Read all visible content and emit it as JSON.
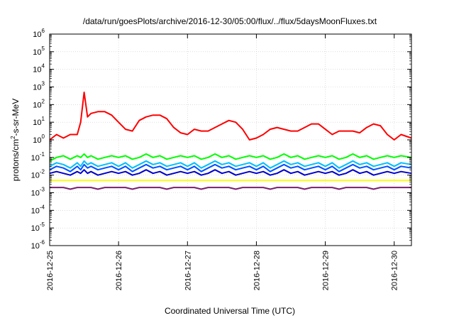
{
  "chart_data": {
    "type": "line",
    "title": "/data/run/goesPlots/archive/2016-12-30/05:00/flux/../flux/5daysMoonFluxes.txt",
    "xlabel": "Coordinated Universal Time (UTC)",
    "ylabel_main": "protons/cm",
    "ylabel_sup": "2",
    "ylabel_rest": "-s-sr-MeV",
    "y_scale": "log",
    "ylim": [
      -6,
      6
    ],
    "xlim": [
      0,
      5.25
    ],
    "y_tick_exponents": [
      "-6",
      "-5",
      "-4",
      "-3",
      "-2",
      "-1",
      "0",
      "1",
      "2",
      "3",
      "4",
      "5",
      "6"
    ],
    "y_tick_base": "10",
    "x_ticks": [
      {
        "pos": 0,
        "label": "2016-12-25"
      },
      {
        "pos": 1,
        "label": "2016-12-26"
      },
      {
        "pos": 2,
        "label": "2016-12-27"
      },
      {
        "pos": 3,
        "label": "2016-12-28"
      },
      {
        "pos": 4,
        "label": "2016-12-29"
      },
      {
        "pos": 5,
        "label": "2016-12-30"
      }
    ],
    "grid": true,
    "legend": "none",
    "x": [
      0.0,
      0.1,
      0.2,
      0.3,
      0.4,
      0.45,
      0.5,
      0.55,
      0.6,
      0.7,
      0.8,
      0.9,
      1.0,
      1.1,
      1.2,
      1.3,
      1.4,
      1.5,
      1.6,
      1.7,
      1.8,
      1.9,
      2.0,
      2.1,
      2.2,
      2.3,
      2.4,
      2.5,
      2.6,
      2.7,
      2.8,
      2.9,
      3.0,
      3.1,
      3.2,
      3.3,
      3.4,
      3.5,
      3.6,
      3.7,
      3.8,
      3.9,
      4.0,
      4.1,
      4.2,
      4.3,
      4.4,
      4.5,
      4.6,
      4.7,
      4.8,
      4.9,
      5.0,
      5.1,
      5.25
    ],
    "series": [
      {
        "color": "#ff0000",
        "log10_values": [
          0.0,
          0.3,
          0.1,
          0.3,
          0.3,
          1.0,
          2.7,
          1.3,
          1.5,
          1.6,
          1.6,
          1.4,
          1.0,
          0.6,
          0.5,
          1.1,
          1.3,
          1.4,
          1.4,
          1.2,
          0.7,
          0.4,
          0.3,
          0.6,
          0.5,
          0.5,
          0.7,
          0.9,
          1.1,
          1.0,
          0.6,
          0.0,
          0.1,
          0.3,
          0.6,
          0.7,
          0.6,
          0.5,
          0.5,
          0.7,
          0.9,
          0.9,
          0.6,
          0.3,
          0.5,
          0.5,
          0.5,
          0.4,
          0.7,
          0.9,
          0.8,
          0.3,
          0.0,
          0.3,
          0.1
        ]
      },
      {
        "color": "#00ff00",
        "log10_values": [
          -1.2,
          -1.0,
          -0.9,
          -1.1,
          -0.9,
          -1.0,
          -0.8,
          -1.0,
          -0.9,
          -1.1,
          -1.0,
          -0.9,
          -1.0,
          -0.9,
          -1.1,
          -1.0,
          -0.8,
          -1.0,
          -0.9,
          -1.1,
          -1.0,
          -0.9,
          -1.0,
          -0.9,
          -1.1,
          -1.0,
          -0.8,
          -1.0,
          -0.9,
          -1.1,
          -1.0,
          -0.9,
          -1.0,
          -0.9,
          -1.1,
          -1.0,
          -0.8,
          -1.0,
          -0.9,
          -1.1,
          -1.0,
          -0.9,
          -1.0,
          -0.9,
          -1.1,
          -1.0,
          -0.8,
          -1.0,
          -0.9,
          -1.1,
          -1.0,
          -0.9,
          -1.0,
          -0.9,
          -1.0
        ]
      },
      {
        "color": "#00bfff",
        "log10_values": [
          -1.5,
          -1.3,
          -1.4,
          -1.6,
          -1.3,
          -1.5,
          -1.2,
          -1.4,
          -1.3,
          -1.5,
          -1.4,
          -1.3,
          -1.5,
          -1.3,
          -1.6,
          -1.4,
          -1.2,
          -1.4,
          -1.3,
          -1.5,
          -1.4,
          -1.3,
          -1.5,
          -1.3,
          -1.6,
          -1.4,
          -1.2,
          -1.4,
          -1.3,
          -1.5,
          -1.4,
          -1.3,
          -1.5,
          -1.3,
          -1.6,
          -1.4,
          -1.2,
          -1.4,
          -1.3,
          -1.5,
          -1.4,
          -1.3,
          -1.5,
          -1.3,
          -1.6,
          -1.4,
          -1.2,
          -1.4,
          -1.3,
          -1.5,
          -1.4,
          -1.3,
          -1.5,
          -1.3,
          -1.4
        ]
      },
      {
        "color": "#0050ff",
        "log10_values": [
          -1.7,
          -1.5,
          -1.6,
          -1.8,
          -1.5,
          -1.7,
          -1.4,
          -1.6,
          -1.5,
          -1.7,
          -1.6,
          -1.5,
          -1.7,
          -1.5,
          -1.8,
          -1.6,
          -1.4,
          -1.6,
          -1.5,
          -1.7,
          -1.6,
          -1.5,
          -1.7,
          -1.5,
          -1.8,
          -1.6,
          -1.4,
          -1.6,
          -1.5,
          -1.7,
          -1.6,
          -1.5,
          -1.7,
          -1.5,
          -1.8,
          -1.6,
          -1.4,
          -1.6,
          -1.5,
          -1.7,
          -1.6,
          -1.5,
          -1.7,
          -1.5,
          -1.8,
          -1.6,
          -1.4,
          -1.6,
          -1.5,
          -1.7,
          -1.6,
          -1.5,
          -1.7,
          -1.5,
          -1.6
        ]
      },
      {
        "color": "#0000cc",
        "log10_values": [
          -1.9,
          -1.8,
          -1.9,
          -2.0,
          -1.8,
          -1.9,
          -1.7,
          -1.9,
          -1.8,
          -2.0,
          -1.9,
          -1.8,
          -1.9,
          -1.8,
          -2.0,
          -1.9,
          -1.7,
          -1.9,
          -1.8,
          -2.0,
          -1.9,
          -1.8,
          -1.9,
          -1.8,
          -2.0,
          -1.9,
          -1.7,
          -1.9,
          -1.8,
          -2.0,
          -1.9,
          -1.8,
          -1.9,
          -1.8,
          -2.0,
          -1.9,
          -1.7,
          -1.9,
          -1.8,
          -2.0,
          -1.9,
          -1.8,
          -1.9,
          -1.8,
          -2.0,
          -1.9,
          -1.7,
          -1.9,
          -1.8,
          -2.0,
          -1.9,
          -1.8,
          -1.9,
          -1.8,
          -1.9
        ]
      },
      {
        "color": "#ffff00",
        "log10_values": [
          -2.3,
          -2.3,
          -2.3,
          -2.3,
          -2.3,
          -2.3,
          -2.3,
          -2.3,
          -2.3,
          -2.3,
          -2.3,
          -2.3,
          -2.3,
          -2.3,
          -2.3,
          -2.3,
          -2.3,
          -2.3,
          -2.3,
          -2.3,
          -2.3,
          -2.3,
          -2.3,
          -2.3,
          -2.3,
          -2.3,
          -2.3,
          -2.3,
          -2.3,
          -2.3,
          -2.3,
          -2.3,
          -2.3,
          -2.3,
          -2.3,
          -2.3,
          -2.3,
          -2.3,
          -2.3,
          -2.3,
          -2.3,
          -2.3,
          -2.3,
          -2.3,
          -2.3,
          -2.3,
          -2.3,
          -2.3,
          -2.3,
          -2.3,
          -2.3,
          -2.3,
          -2.3,
          -2.3,
          -2.3
        ]
      },
      {
        "color": "#7a1f6e",
        "log10_values": [
          -2.7,
          -2.7,
          -2.7,
          -2.8,
          -2.7,
          -2.7,
          -2.7,
          -2.7,
          -2.7,
          -2.8,
          -2.7,
          -2.7,
          -2.7,
          -2.7,
          -2.8,
          -2.7,
          -2.7,
          -2.7,
          -2.7,
          -2.8,
          -2.7,
          -2.7,
          -2.7,
          -2.7,
          -2.8,
          -2.7,
          -2.7,
          -2.7,
          -2.7,
          -2.8,
          -2.7,
          -2.7,
          -2.7,
          -2.7,
          -2.8,
          -2.7,
          -2.7,
          -2.7,
          -2.7,
          -2.8,
          -2.7,
          -2.7,
          -2.7,
          -2.7,
          -2.8,
          -2.7,
          -2.7,
          -2.7,
          -2.7,
          -2.8,
          -2.7,
          -2.7,
          -2.7,
          -2.7,
          -2.7
        ]
      }
    ]
  }
}
